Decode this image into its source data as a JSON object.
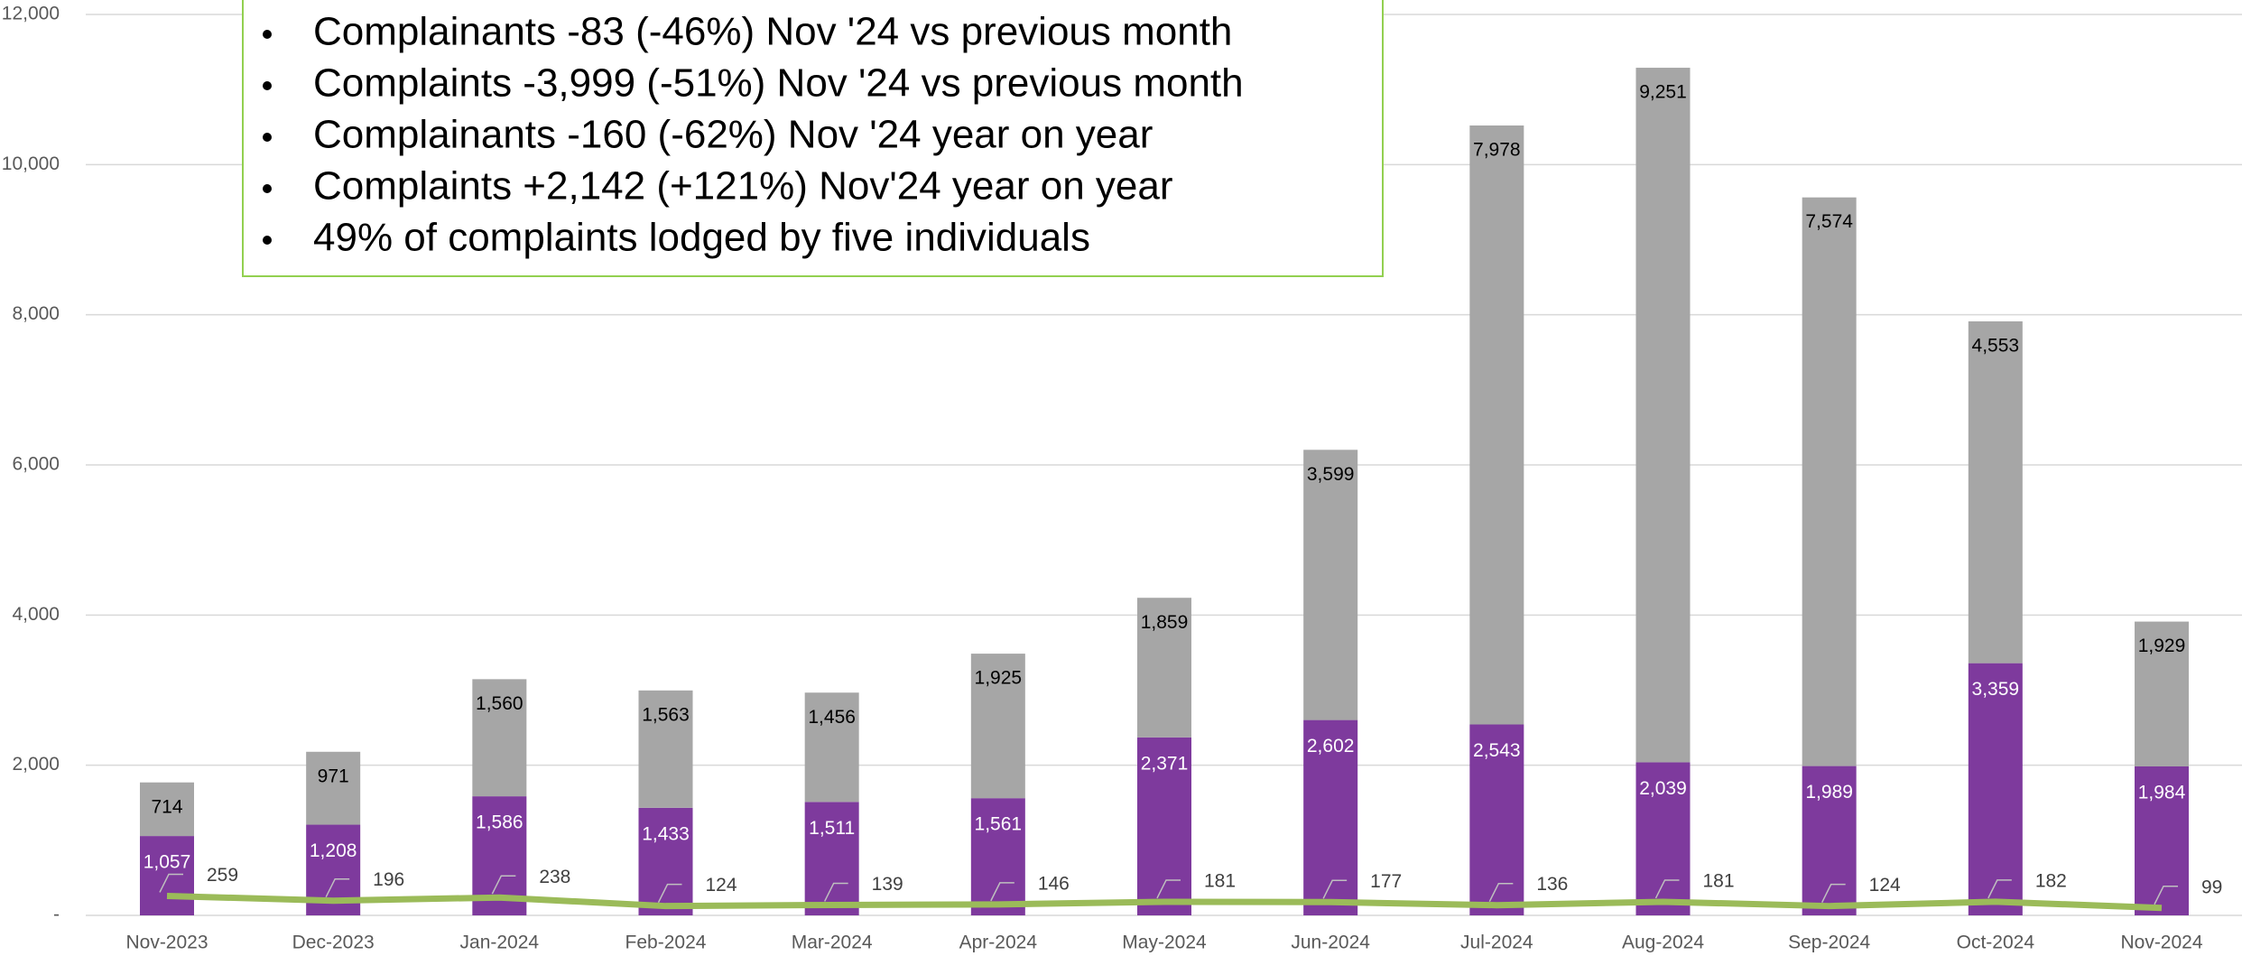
{
  "chart_data": {
    "type": "stacked-bar-line",
    "annotations": [
      "Complainants -83 (-46%) Nov '24 vs previous month",
      "Complaints -3,999 (-51%) Nov '24 vs previous month",
      "Complainants -160 (-62%) Nov '24 year on year",
      "Complaints +2,142 (+121%)  Nov'24 year on year",
      "49% of complaints lodged by five individuals"
    ],
    "categories": [
      "Nov-2023",
      "Dec-2023",
      "Jan-2024",
      "Feb-2024",
      "Mar-2024",
      "Apr-2024",
      "May-2024",
      "Jun-2024",
      "Jul-2024",
      "Aug-2024",
      "Sep-2024",
      "Oct-2024",
      "Nov-2024"
    ],
    "series": [
      {
        "color": "#7e3a9d",
        "kind": "bar",
        "values": [
          1057,
          1208,
          1586,
          1433,
          1511,
          1561,
          2371,
          2602,
          2543,
          2039,
          1989,
          3359,
          1984
        ],
        "value_labels": [
          "1,057",
          "1,208",
          "1,586",
          "1,433",
          "1,511",
          "1,561",
          "2,371",
          "2,602",
          "2,543",
          "2,039",
          "1,989",
          "3,359",
          "1,984"
        ]
      },
      {
        "color": "#a6a6a6",
        "kind": "bar",
        "values": [
          714,
          971,
          1560,
          1563,
          1456,
          1925,
          1859,
          3599,
          7978,
          9251,
          7574,
          4553,
          1929
        ],
        "value_labels": [
          "714",
          "971",
          "1,560",
          "1,563",
          "1,456",
          "1,925",
          "1,859",
          "3,599",
          "7,978",
          "9,251",
          "7,574",
          "4,553",
          "1,929"
        ]
      },
      {
        "color": "#9bbb59",
        "kind": "line",
        "values": [
          259,
          196,
          238,
          124,
          139,
          146,
          181,
          177,
          136,
          181,
          124,
          182,
          99
        ]
      }
    ],
    "ylim": [
      0,
      12000
    ],
    "yticks": [
      {
        "value": 0,
        "label": "-"
      },
      {
        "value": 2000,
        "label": "2,000"
      },
      {
        "value": 4000,
        "label": "4,000"
      },
      {
        "value": 6000,
        "label": "6,000"
      },
      {
        "value": 8000,
        "label": "8,000"
      },
      {
        "value": 10000,
        "label": "10,000"
      },
      {
        "value": 12000,
        "label": "12,000"
      }
    ],
    "grid": true
  }
}
